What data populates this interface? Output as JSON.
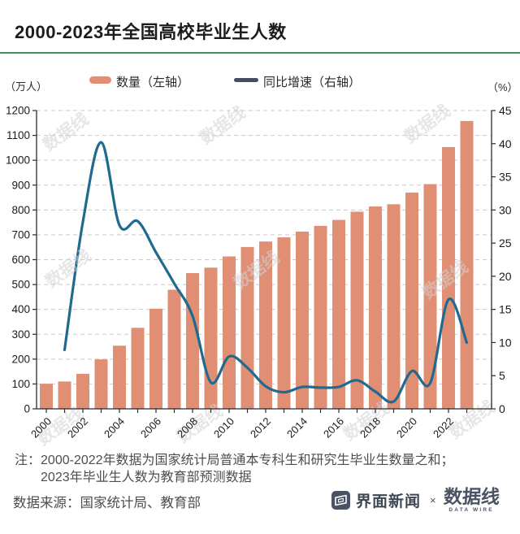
{
  "header": {
    "title": "2000-2023年全国高校毕业生人数"
  },
  "chart_data": {
    "type": "combo",
    "title": "2000-2023年全国高校毕业生人数",
    "categories": [
      2000,
      2001,
      2002,
      2003,
      2004,
      2005,
      2006,
      2007,
      2008,
      2009,
      2010,
      2011,
      2012,
      2013,
      2014,
      2015,
      2016,
      2017,
      2018,
      2019,
      2020,
      2021,
      2022,
      2023
    ],
    "series": [
      {
        "name": "数量（左轴）",
        "type": "bar",
        "axis": "left",
        "unit": "万人",
        "values": [
          101,
          110,
          141,
          199,
          254,
          326,
          403,
          479,
          546,
          568,
          613,
          651,
          673,
          690,
          713,
          736,
          760,
          793,
          814,
          823,
          870,
          904,
          1053,
          1158
        ]
      },
      {
        "name": "同比增速（右轴）",
        "type": "line",
        "axis": "right",
        "unit": "%",
        "values": [
          null,
          8.9,
          28.2,
          40.2,
          27.7,
          28.3,
          23.6,
          18.9,
          14.0,
          4.0,
          7.9,
          6.2,
          3.4,
          2.5,
          3.3,
          3.2,
          3.3,
          4.3,
          2.6,
          1.1,
          5.7,
          3.9,
          16.5,
          10.0
        ]
      }
    ],
    "left_axis": {
      "unit_label": "（万人）",
      "min": 0,
      "max": 1200,
      "step": 100,
      "tick_labels": [
        "0",
        "100",
        "200",
        "300",
        "400",
        "500",
        "600",
        "700",
        "800",
        "900",
        "1000",
        "1100",
        "1200"
      ]
    },
    "right_axis": {
      "unit_label": "（%）",
      "min": 0,
      "max": 45,
      "step": 5,
      "tick_labels": [
        "0",
        "5",
        "10",
        "15",
        "20",
        "25",
        "30",
        "35",
        "40",
        "45"
      ]
    },
    "x_tick_labels": [
      "2000",
      "2002",
      "2004",
      "2006",
      "2008",
      "2010",
      "2012",
      "2014",
      "2016",
      "2018",
      "2020",
      "2022"
    ],
    "x_labeled_every": 2,
    "grid": "horizontal-dashed",
    "legend_position": "top"
  },
  "notes": {
    "prefix": "注：",
    "line1": "2000-2022年数据为国家统计局普通本专科生和研究生毕业生数量之和；",
    "line2": "2023年毕业生人数为教育部预测数据"
  },
  "source": {
    "label": "数据来源：国家统计局、教育部"
  },
  "footer": {
    "jiemian": "界面新闻",
    "cross": "×",
    "datawire": "数据线",
    "datawire_sub": "DATA WIRE"
  },
  "watermark": {
    "text": "数据线"
  },
  "colors": {
    "bar": "#E08E74",
    "line": "#1F6A8E",
    "legend_line": "#445060",
    "title_rule": "#3E9163",
    "axis": "#2b2b2b",
    "grid": "#C9C9C9",
    "tick_text": "#1a1a1a",
    "logo": "#4A5364",
    "watermark": "#D3D3D6"
  }
}
